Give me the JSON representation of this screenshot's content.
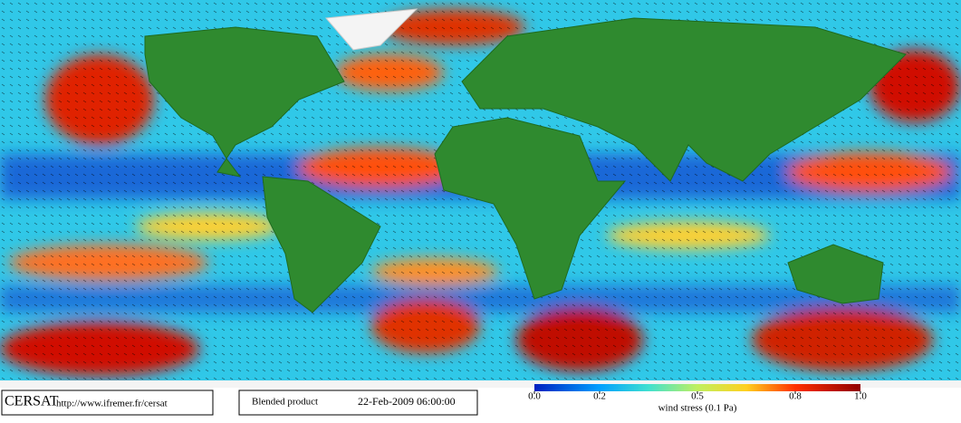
{
  "logo": "CERSAT",
  "url": "http://www.ifremer.fr/cersat",
  "product": "Blended product",
  "timestamp": "22-Feb-2009 06:00:00",
  "colorbar": {
    "label": "wind stress (0.1 Pa)",
    "range": [
      0,
      1
    ],
    "ticks": [
      {
        "value": 0,
        "label": "0.0"
      },
      0.2,
      0.5,
      0.8,
      {
        "value": 1,
        "label": "1.0"
      }
    ]
  }
}
